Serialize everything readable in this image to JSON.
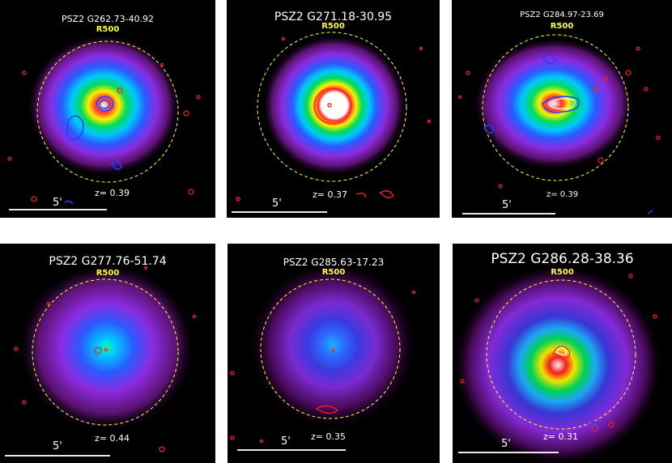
{
  "panels": [
    {
      "title": "PSZ2 G262.73-40.92",
      "r500": "R500",
      "z": "z= 0.39",
      "scale": "5'"
    },
    {
      "title": "PSZ2 G271.18-30.95",
      "r500": "R500",
      "z": "z= 0.37",
      "scale": "5'"
    },
    {
      "title": "PSZ2 G284.97-23.69",
      "r500": "R500",
      "z": "z= 0.39",
      "scale": "5'"
    },
    {
      "title": "PSZ2 G277.76-51.74",
      "r500": "R500",
      "z": "z= 0.44",
      "scale": "5'"
    },
    {
      "title": "PSZ2 G285.63-17.23",
      "r500": "R500",
      "z": "z= 0.35",
      "scale": "5'"
    },
    {
      "title": "PSZ2 G286.28-38.36",
      "r500": "R500",
      "z": "z= 0.31",
      "scale": "5'"
    }
  ],
  "colors": {
    "background": "#000000",
    "r500_circle": "#ffff33",
    "radio_contour": "#ff2020",
    "blue_contour": "#2040ff",
    "halo_outer": "#4a0a5a",
    "halo_mid": "#8a2bd8",
    "core": "#1e90ff"
  }
}
